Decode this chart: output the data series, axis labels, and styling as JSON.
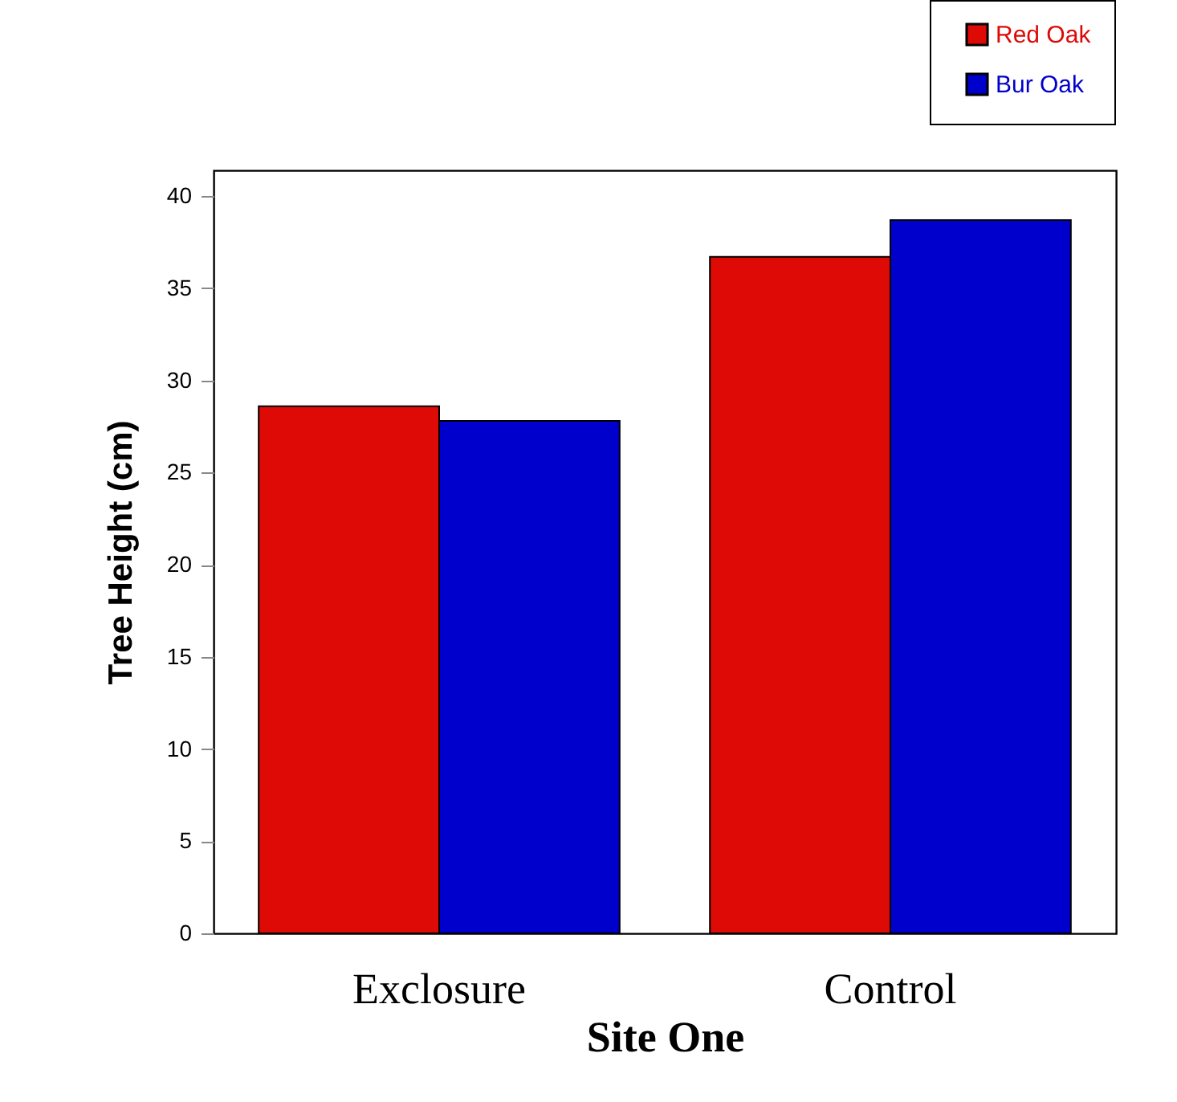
{
  "chart_data": {
    "type": "bar",
    "xlabel": "Site One",
    "ylabel": "Tree Height (cm)",
    "categories": [
      "Exclosure",
      "Control"
    ],
    "series": [
      {
        "name": "Red Oak",
        "color": "#dd0a06",
        "values": [
          28.6,
          36.7
        ]
      },
      {
        "name": "Bur Oak",
        "color": "#0000cc",
        "values": [
          27.8,
          38.7
        ]
      }
    ],
    "ylim": [
      0,
      41.4
    ],
    "yticks": [
      0,
      5,
      10,
      15,
      20,
      25,
      30,
      35,
      40
    ],
    "grid": false,
    "legend": "top right"
  }
}
